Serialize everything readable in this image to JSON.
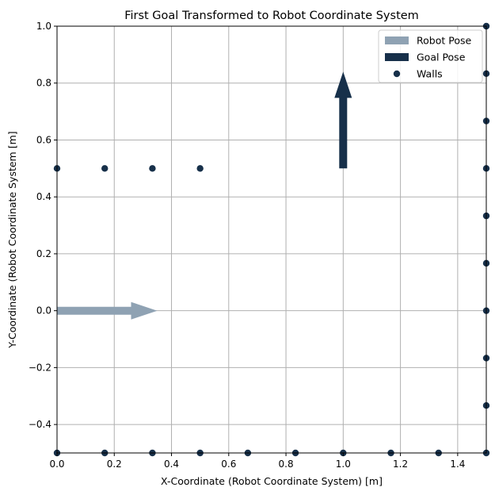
{
  "chart_data": {
    "type": "scatter",
    "title": "First Goal Transformed to Robot Coordinate System",
    "xlabel": "X-Coordinate (Robot Coordinate System) [m]",
    "ylabel": "Y-Coordinate (Robot Coordinate System [m]",
    "xlim": [
      0,
      1.5
    ],
    "ylim": [
      -0.5,
      1.0
    ],
    "xticks": [
      0.0,
      0.2,
      0.4,
      0.6,
      0.8,
      1.0,
      1.2,
      1.4
    ],
    "xtick_labels": [
      "0.0",
      "0.2",
      "0.4",
      "0.6",
      "0.8",
      "1.0",
      "1.2",
      "1.4"
    ],
    "yticks": [
      -0.4,
      -0.2,
      0.0,
      0.2,
      0.4,
      0.6,
      0.8,
      1.0
    ],
    "ytick_labels": [
      "−0.4",
      "−0.2",
      "0.0",
      "0.2",
      "0.4",
      "0.6",
      "0.8",
      "1.0"
    ],
    "grid": true,
    "legend_position": "top-right",
    "series": [
      {
        "name": "Robot Pose",
        "kind": "arrow",
        "color": "#8fa2b3",
        "x": 0.0,
        "y": 0.0,
        "dx": 0.35,
        "dy": 0.0
      },
      {
        "name": "Goal Pose",
        "kind": "arrow",
        "color": "#17304a",
        "x": 1.0,
        "y": 0.5,
        "dx": 0.0,
        "dy": 0.34
      },
      {
        "name": "Walls",
        "kind": "points",
        "color": "#17304a",
        "points": [
          [
            0.0,
            0.5
          ],
          [
            0.1667,
            0.5
          ],
          [
            0.3333,
            0.5
          ],
          [
            0.5,
            0.5
          ],
          [
            0.0,
            -0.5
          ],
          [
            0.1667,
            -0.5
          ],
          [
            0.3333,
            -0.5
          ],
          [
            0.5,
            -0.5
          ],
          [
            0.6667,
            -0.5
          ],
          [
            0.8333,
            -0.5
          ],
          [
            1.0,
            -0.5
          ],
          [
            1.1667,
            -0.5
          ],
          [
            1.3333,
            -0.5
          ],
          [
            1.5,
            -0.5
          ],
          [
            1.5,
            -0.3333
          ],
          [
            1.5,
            -0.1667
          ],
          [
            1.5,
            0.0
          ],
          [
            1.5,
            0.1667
          ],
          [
            1.5,
            0.3333
          ],
          [
            1.5,
            0.5
          ],
          [
            1.5,
            0.6667
          ],
          [
            1.5,
            0.8333
          ],
          [
            1.5,
            1.0
          ]
        ]
      }
    ]
  }
}
